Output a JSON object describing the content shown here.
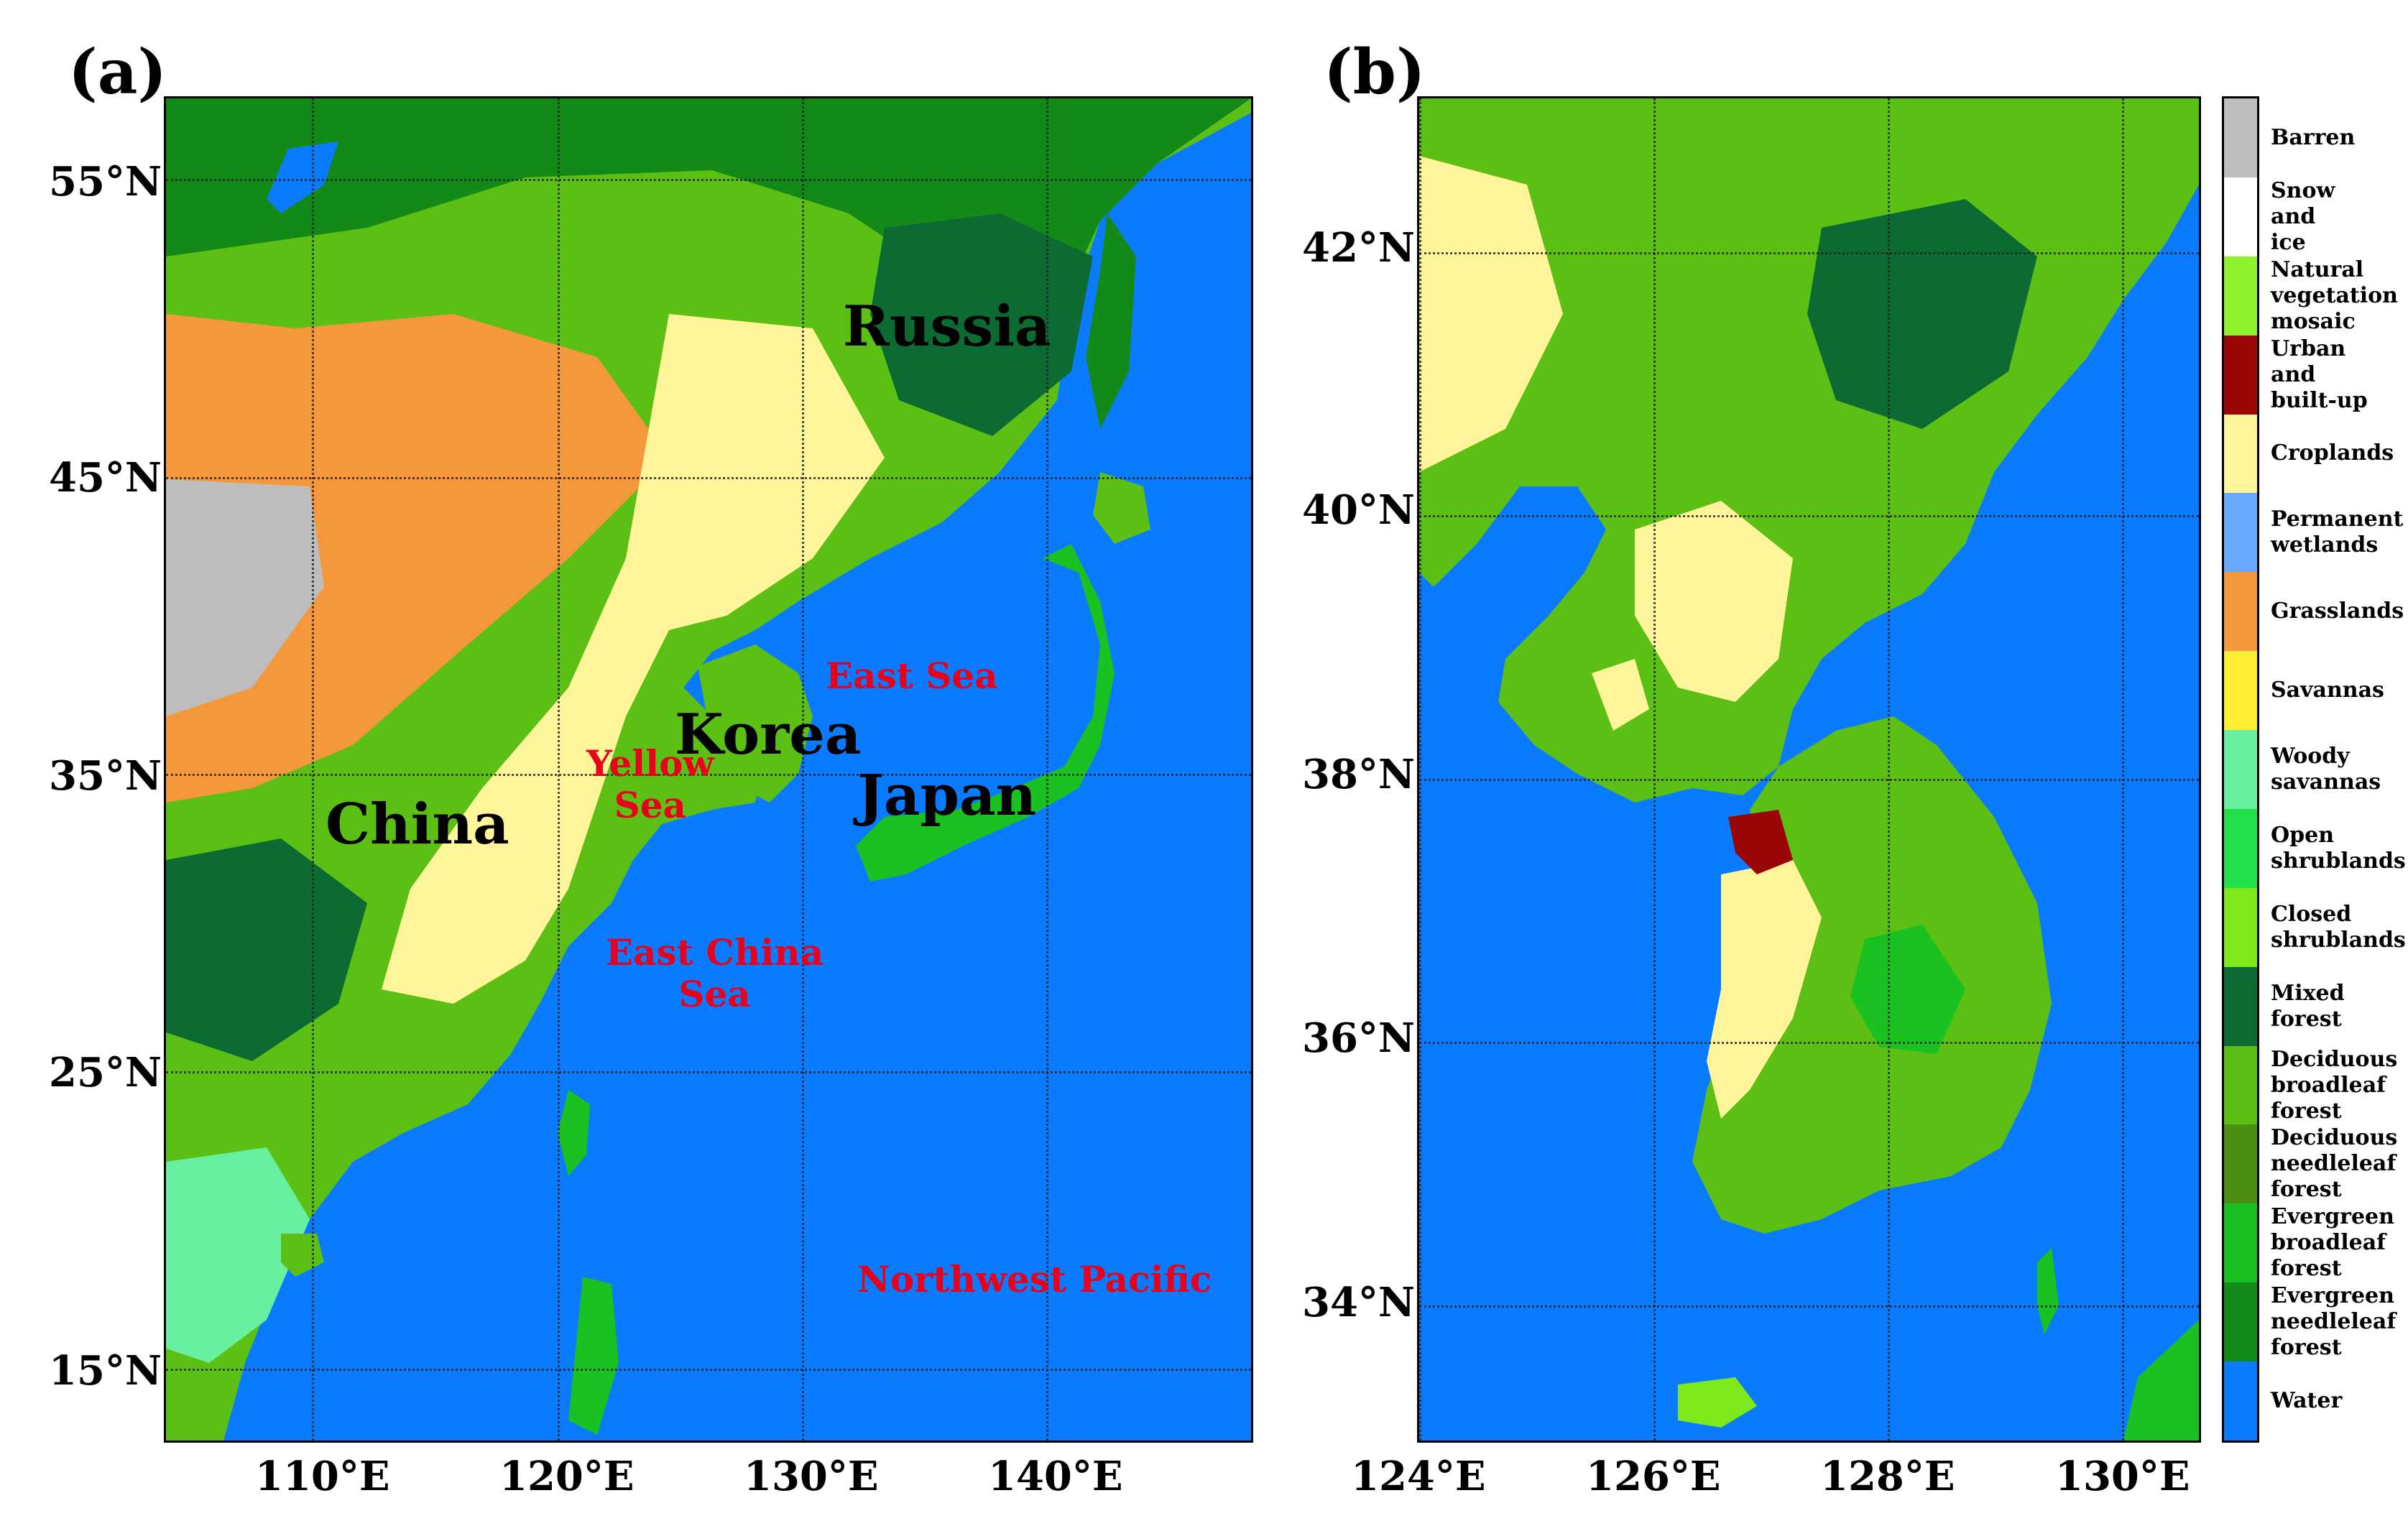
{
  "panels": {
    "a": {
      "label": "(a)",
      "lat_ticks": [
        "55°N",
        "45°N",
        "35°N",
        "25°N",
        "15°N"
      ],
      "lon_ticks": [
        "110°E",
        "120°E",
        "130°E",
        "140°E"
      ],
      "places": {
        "russia": "Russia",
        "korea": "Korea",
        "japan": "Japan",
        "china": "China",
        "east_sea": "East Sea",
        "yellow_sea_1": "Yellow",
        "yellow_sea_2": "Sea",
        "east_china_sea_1": "East China",
        "east_china_sea_2": "Sea",
        "northwest_pacific": "Northwest Pacific"
      }
    },
    "b": {
      "label": "(b)",
      "lat_ticks": [
        "42°N",
        "40°N",
        "38°N",
        "36°N",
        "34°N"
      ],
      "lon_ticks": [
        "124°E",
        "126°E",
        "128°E",
        "130°E"
      ]
    }
  },
  "legend": [
    {
      "label": "Barren",
      "color": "#bdbdbd"
    },
    {
      "label": "Snow and ice",
      "color": "#ffffff"
    },
    {
      "label": "Natural vegetation mosaic",
      "color": "#8ef22c"
    },
    {
      "label": "Urban and built-up",
      "color": "#9a0606"
    },
    {
      "label": "Croplands",
      "color": "#fff59a"
    },
    {
      "label": "Permanent wetlands",
      "color": "#66aaff"
    },
    {
      "label": "Grasslands",
      "color": "#f5973b"
    },
    {
      "label": "Savannas",
      "color": "#ffee33"
    },
    {
      "label": "Woody savannas",
      "color": "#66f0a0"
    },
    {
      "label": "Open shrublands",
      "color": "#22e04a"
    },
    {
      "label": "Closed shrublands",
      "color": "#7de81a"
    },
    {
      "label": "Mixed forest",
      "color": "#0b6b33"
    },
    {
      "label": "Deciduous broadleaf forest",
      "color": "#5cbf14"
    },
    {
      "label": "Deciduous needleleaf forest",
      "color": "#4a8f14"
    },
    {
      "label": "Evergreen broadleaf forest",
      "color": "#19c220"
    },
    {
      "label": "Evergreen needleleaf forest",
      "color": "#138a17"
    },
    {
      "label": "Water",
      "color": "#0a7bff"
    }
  ]
}
